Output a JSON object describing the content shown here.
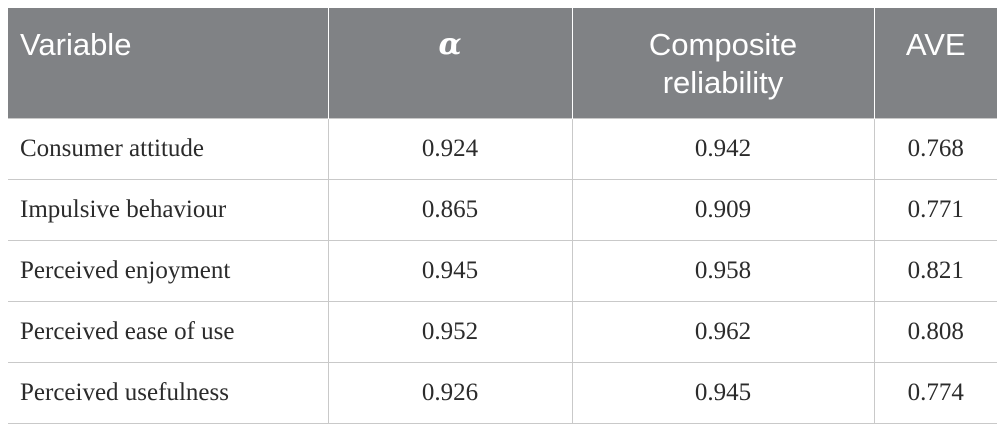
{
  "table": {
    "headers": {
      "variable": "Variable",
      "alpha": "α",
      "composite_reliability": "Composite reliability",
      "ave": "AVE"
    },
    "rows": [
      {
        "variable": "Consumer attitude",
        "alpha": "0.924",
        "composite_reliability": "0.942",
        "ave": "0.768"
      },
      {
        "variable": "Impulsive behaviour",
        "alpha": "0.865",
        "composite_reliability": "0.909",
        "ave": "0.771"
      },
      {
        "variable": "Perceived enjoyment",
        "alpha": "0.945",
        "composite_reliability": "0.958",
        "ave": "0.821"
      },
      {
        "variable": "Perceived ease of use",
        "alpha": "0.952",
        "composite_reliability": "0.962",
        "ave": "0.808"
      },
      {
        "variable": "Perceived usefulness",
        "alpha": "0.926",
        "composite_reliability": "0.945",
        "ave": "0.774"
      }
    ],
    "colors": {
      "header_background": "#808285",
      "header_text": "#ffffff",
      "body_text": "#2b2b2b",
      "rule": "#c9c9c9"
    }
  }
}
